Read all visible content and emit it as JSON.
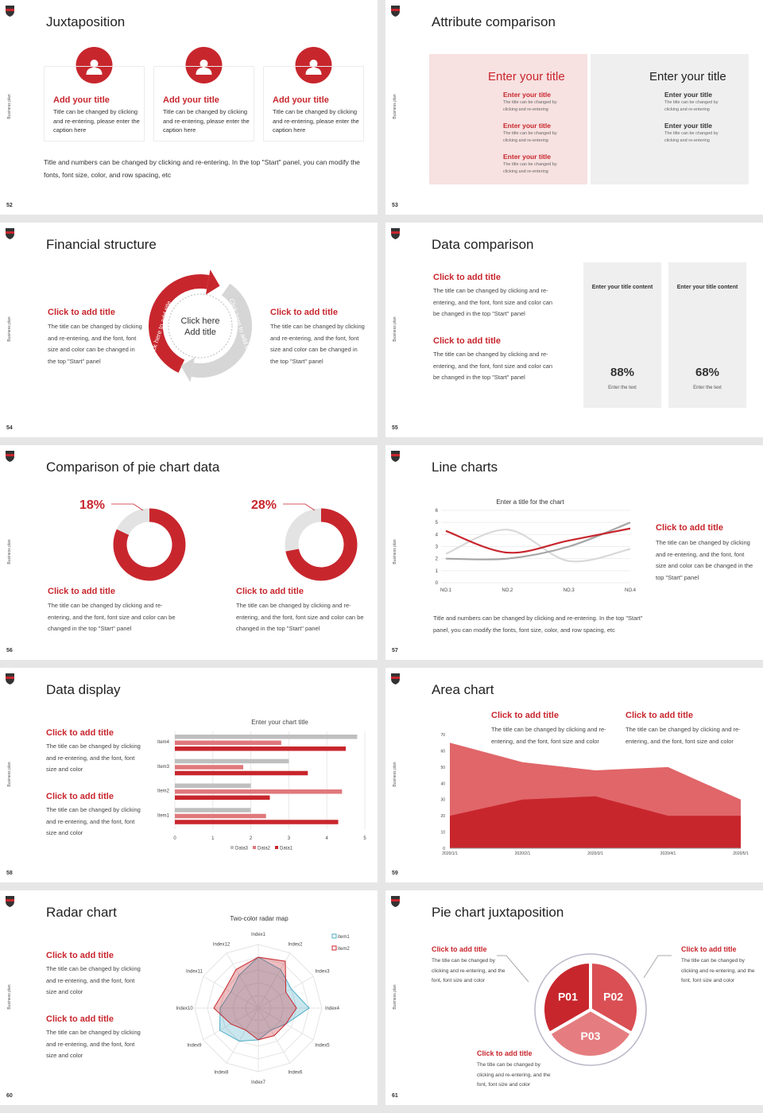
{
  "slides": [
    {
      "number": "52",
      "title": "Juxtaposition",
      "side_label": "Business plan",
      "cards": [
        {
          "title": "Add your title",
          "text": "Title can be changed by clicking and re-entering, please enter the caption here"
        },
        {
          "title": "Add your title",
          "text": "Title can be changed by clicking and re-entering, please enter the caption here"
        },
        {
          "title": "Add your title",
          "text": "Title can be changed by clicking and re-entering, please enter the caption here"
        }
      ],
      "note": "Title and numbers can be changed by clicking and re-entering. In the top \"Start\" panel, you can modify the fonts, font size, color, and row spacing, etc"
    },
    {
      "number": "53",
      "title": "Attribute comparison",
      "side_label": "Business plan",
      "panels": [
        {
          "title": "Enter your title",
          "items": [
            {
              "title": "Enter your title",
              "text": "The title can be changed by clicking and re-entering"
            },
            {
              "title": "Enter your title",
              "text": "The title can be changed by clicking and re-entering"
            },
            {
              "title": "Enter your title",
              "text": "The title can be changed by clicking and re-entering"
            }
          ]
        },
        {
          "title": "Enter your title",
          "items": [
            {
              "title": "Enter your title",
              "text": "The title can be changed by clicking and re-entering"
            },
            {
              "title": "Enter your title",
              "text": "The title can be changed by clicking and re-entering"
            }
          ]
        }
      ]
    },
    {
      "number": "54",
      "title": "Financial structure",
      "side_label": "Business plan",
      "items": [
        {
          "title": "Click to add title",
          "text": "The title can be changed by clicking and re-entering, and the font, font size and color can be changed in the top \"Start\" panel"
        },
        {
          "title": "Click to add title",
          "text": "The title can be changed by clicking and re-entering, and the font, font size and color can be changed in the top \"Start\" panel"
        }
      ],
      "center": "Click here Add title",
      "arc_labels": [
        "Click here to add title",
        "Click here to add title"
      ]
    },
    {
      "number": "55",
      "title": "Data comparison",
      "side_label": "Business plan",
      "items": [
        {
          "title": "Click to add title",
          "text": "The title can be changed by clicking and re-entering, and the font, font size and color can be changed in the top \"Start\" panel"
        },
        {
          "title": "Click to add title",
          "text": "The title can be changed by clicking and re-entering, and the font, font size and color can be changed in the top \"Start\" panel"
        }
      ],
      "cards": [
        {
          "heading": "Enter your title content",
          "value": 88,
          "value_label": "88%",
          "caption": "Enter the text",
          "color": "#c8262d"
        },
        {
          "heading": "Enter your title content",
          "value": 68,
          "value_label": "68%",
          "caption": "Enter the text",
          "color": "#c8262d"
        }
      ]
    },
    {
      "number": "56",
      "title": "Comparison of pie chart data",
      "side_label": "Business plan",
      "pies": [
        {
          "value": 18,
          "value_label": "18%",
          "title": "Click to add title",
          "text": "The title can be changed by clicking and re-entering, and the font, font size and color can be changed in the top \"Start\" panel"
        },
        {
          "value": 28,
          "value_label": "28%",
          "title": "Click to add title",
          "text": "The title can be changed by clicking and re-entering, and the font, font size and color can be changed in the top \"Start\" panel"
        }
      ]
    },
    {
      "number": "57",
      "title": "Line charts",
      "side_label": "Business plan",
      "chart": {
        "type": "line",
        "title": "Enter a title for the chart",
        "categories": [
          "NO.1",
          "NO.2",
          "NO.3",
          "NO.4"
        ],
        "ylim": [
          0,
          6
        ],
        "yticks": [
          0,
          1,
          2,
          3,
          4,
          5,
          6
        ],
        "grid": true,
        "series": [
          {
            "color": "#d9d9d9",
            "values": [
              2.4,
              4.4,
              1.8,
              2.8
            ]
          },
          {
            "color": "#a6a6a6",
            "values": [
              2,
              2,
              3,
              5
            ]
          },
          {
            "color": "#c8262d",
            "values": [
              4.3,
              2.5,
              3.5,
              4.5
            ]
          }
        ]
      },
      "item": {
        "title": "Click to add title",
        "text": "The title can be changed by clicking and re-entering, and the font, font size and color can be changed in the top \"Start\" panel"
      },
      "note": "Title and numbers can be changed by clicking and re-entering. In the top \"Start\" panel, you can modify the fonts, font size, color, and row spacing, etc"
    },
    {
      "number": "58",
      "title": "Data display",
      "side_label": "Business plan",
      "items": [
        {
          "title": "Click to add title",
          "text": "The title can be changed by clicking and re-entering, and the font, font size and color"
        },
        {
          "title": "Click to add title",
          "text": "The title can be changed by clicking and re-entering, and the font, font size and color"
        }
      ],
      "chart": {
        "type": "hbar",
        "title": "Enter your chart title",
        "categories": [
          "Item1",
          "Item2",
          "Item3",
          "Item4"
        ],
        "xlim": [
          0,
          5
        ],
        "xticks": [
          0,
          1,
          2,
          3,
          4,
          5
        ],
        "grid": true,
        "series": [
          {
            "name": "Data3",
            "color": "#bfbfbf",
            "values": [
              2,
              2,
              3,
              4.8
            ]
          },
          {
            "name": "Data2",
            "color": "#e0787c",
            "values": [
              2.4,
              4.4,
              1.8,
              2.8
            ]
          },
          {
            "name": "Data1",
            "color": "#c8262d",
            "values": [
              4.3,
              2.5,
              3.5,
              4.5
            ]
          }
        ]
      }
    },
    {
      "number": "59",
      "title": "Area chart",
      "side_label": "Business plan",
      "items": [
        {
          "title": "Click to add title",
          "text": "The title can be changed by clicking and re-entering, and the font, font size and color"
        },
        {
          "title": "Click to add title",
          "text": "The title can be changed by clicking and re-entering, and the font, font size and color"
        }
      ],
      "chart": {
        "type": "area",
        "categories": [
          "2020/1/1",
          "2020/2/1",
          "2020/3/1",
          "2020/4/1",
          "2020/5/1"
        ],
        "ylim": [
          0,
          70
        ],
        "yticks": [
          0,
          10,
          20,
          30,
          40,
          50,
          60,
          70
        ],
        "series": [
          {
            "color": "#e06669",
            "values": [
              65,
              53,
              48,
              50,
              30
            ]
          },
          {
            "color": "#c8262d",
            "values": [
              20,
              30,
              32,
              20,
              20
            ]
          }
        ]
      }
    },
    {
      "number": "60",
      "title": "Radar chart",
      "side_label": "Business plan",
      "items": [
        {
          "title": "Click to add title",
          "text": "The title can be changed by clicking and re-entering, and the font, font size and color"
        },
        {
          "title": "Click to add title",
          "text": "The title can be changed by clicking and re-entering, and the font, font size and color"
        }
      ],
      "chart": {
        "type": "radar",
        "title": "Two-color radar map",
        "categories": [
          "Index1",
          "Index2",
          "Index3",
          "Index4",
          "Index5",
          "Index6",
          "Index7",
          "Index8",
          "Index9",
          "Index10",
          "Index11",
          "Index12"
        ],
        "rlim": [
          0,
          10
        ],
        "rticks": [
          2,
          4,
          6,
          8,
          10
        ],
        "series": [
          {
            "name": "item1",
            "color": "#4bacc6",
            "values": [
              8,
              7,
              6,
              8,
              5,
              4,
              5,
              6,
              7,
              6,
              5,
              6
            ]
          },
          {
            "name": "item2",
            "color": "#c8262d",
            "values": [
              8,
              8.5,
              5,
              6,
              5,
              5,
              5,
              4,
              5,
              7,
              6,
              7
            ]
          }
        ]
      }
    },
    {
      "number": "61",
      "title": "Pie chart juxtaposition",
      "side_label": "Business plan",
      "items": [
        {
          "title": "Click to add title",
          "text": "The title can be changed by clicking and re-entering, and the font, font size and color"
        },
        {
          "title": "Click to add title",
          "text": "The title can be changed by clicking and re-entering, and the font, font size and color"
        },
        {
          "title": "Click to add title",
          "text": "The title can be changed by clicking and re-entering, and the font, font size and color"
        }
      ],
      "segments": [
        "P01",
        "P02",
        "P03"
      ]
    }
  ]
}
